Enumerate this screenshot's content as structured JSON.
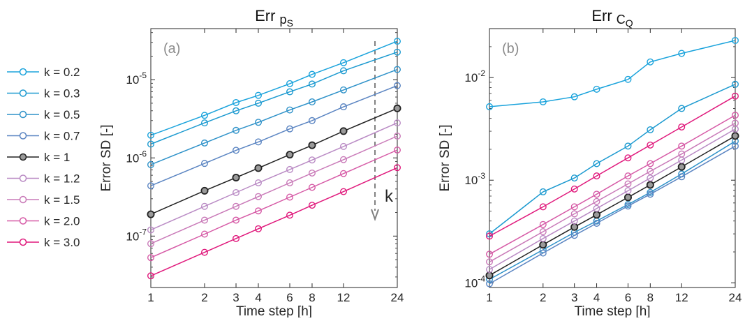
{
  "legend": {
    "placement": "left",
    "entries": [
      {
        "label": "k = 0.2",
        "color": "#1aa3dc"
      },
      {
        "label": "k = 0.3",
        "color": "#1c9ad0"
      },
      {
        "label": "k = 0.5",
        "color": "#2f92c9"
      },
      {
        "label": "k = 0.7",
        "color": "#5b85c2"
      },
      {
        "label": "k = 1",
        "color": "#222222"
      },
      {
        "label": "k = 1.2",
        "color": "#b98ac4"
      },
      {
        "label": "k = 1.5",
        "color": "#c97ab8"
      },
      {
        "label": "k = 2.0",
        "color": "#d65aa6"
      },
      {
        "label": "k = 3.0",
        "color": "#e0197c"
      }
    ]
  },
  "chart_data": [
    {
      "type": "line",
      "title": "Err",
      "title_symbol": "p",
      "title_subscript": "S",
      "panel_label": "(a)",
      "xlabel": "Time step [h]",
      "ylabel": "Error SD [-]",
      "x_scale": "log",
      "y_scale": "log",
      "x": [
        1,
        2,
        3,
        4,
        6,
        8,
        12,
        24
      ],
      "xlim": [
        1,
        24
      ],
      "ylim": [
        2.2e-08,
        4.5e-05
      ],
      "x_ticks": [
        "1",
        "2",
        "3",
        "4",
        "6",
        "8",
        "12",
        "24"
      ],
      "y_ticks": [
        {
          "value": 1e-07,
          "base": "10",
          "exp": "-7"
        },
        {
          "value": 1e-06,
          "base": "10",
          "exp": "-6"
        },
        {
          "value": 1e-05,
          "base": "10",
          "exp": "-5"
        }
      ],
      "grid": false,
      "annotation": {
        "text": "k",
        "arrow": "dashed, pointing down",
        "x_position": 18
      },
      "series": [
        {
          "name": "k = 0.2",
          "values": [
            1.95e-06,
            3.5e-06,
            5.1e-06,
            6.3e-06,
            8.9e-06,
            1.17e-05,
            1.65e-05,
            3.1e-05
          ]
        },
        {
          "name": "k = 0.3",
          "values": [
            1.5e-06,
            2.8e-06,
            4e-06,
            5e-06,
            7e-06,
            8.8e-06,
            1.3e-05,
            2.25e-05
          ]
        },
        {
          "name": "k = 0.5",
          "values": [
            8.2e-07,
            1.55e-06,
            2.25e-06,
            2.85e-06,
            4.1e-06,
            5.2e-06,
            7.4e-06,
            1.35e-05
          ]
        },
        {
          "name": "k = 0.7",
          "values": [
            4.4e-07,
            8.5e-07,
            1.25e-06,
            1.6e-06,
            2.35e-06,
            3e-06,
            4.5e-06,
            8.4e-06
          ]
        },
        {
          "name": "k = 1",
          "values": [
            1.9e-07,
            3.8e-07,
            5.6e-07,
            7.4e-07,
            1.1e-06,
            1.45e-06,
            2.2e-06,
            4.3e-06
          ]
        },
        {
          "name": "k = 1.2",
          "values": [
            1.2e-07,
            2.4e-07,
            3.6e-07,
            4.8e-07,
            7.1e-07,
            9.4e-07,
            1.4e-06,
            2.8e-06
          ]
        },
        {
          "name": "k = 1.5",
          "values": [
            8e-08,
            1.6e-07,
            2.4e-07,
            3.2e-07,
            4.8e-07,
            6.4e-07,
            9.5e-07,
            1.9e-06
          ]
        },
        {
          "name": "k = 2.0",
          "values": [
            5.3e-08,
            1.06e-07,
            1.6e-07,
            2.1e-07,
            3.15e-07,
            4.2e-07,
            6.3e-07,
            1.26e-06
          ]
        },
        {
          "name": "k = 3.0",
          "values": [
            3.1e-08,
            6.2e-08,
            9.3e-08,
            1.24e-07,
            1.85e-07,
            2.48e-07,
            3.7e-07,
            7.5e-07
          ]
        }
      ]
    },
    {
      "type": "line",
      "title": "Err",
      "title_symbol": "C",
      "title_subscript": "Q",
      "panel_label": "(b)",
      "xlabel": "Time step [h]",
      "ylabel": "Error SD [-]",
      "x_scale": "log",
      "y_scale": "log",
      "x": [
        1,
        2,
        3,
        4,
        6,
        8,
        12,
        24
      ],
      "xlim": [
        1,
        24
      ],
      "ylim": [
        9e-05,
        0.03
      ],
      "x_ticks": [
        "1",
        "2",
        "3",
        "4",
        "6",
        "8",
        "12",
        "24"
      ],
      "y_ticks": [
        {
          "value": 0.0001,
          "base": "10",
          "exp": "-4"
        },
        {
          "value": 0.001,
          "base": "10",
          "exp": "-3"
        },
        {
          "value": 0.01,
          "base": "10",
          "exp": "-2"
        }
      ],
      "grid": false,
      "series": [
        {
          "name": "k = 0.2",
          "values": [
            0.0052,
            0.0058,
            0.0065,
            0.0077,
            0.0096,
            0.0142,
            0.0172,
            0.023
          ]
        },
        {
          "name": "k = 0.3",
          "values": [
            0.0003,
            0.00077,
            0.00105,
            0.00145,
            0.00215,
            0.0031,
            0.005,
            0.0086
          ]
        },
        {
          "name": "k = 0.5",
          "values": [
            0.000108,
            0.00021,
            0.00031,
            0.0004,
            0.00058,
            0.00076,
            0.00115,
            0.0024
          ]
        },
        {
          "name": "k = 0.7",
          "values": [
            9.8e-05,
            0.000195,
            0.00029,
            0.00038,
            0.00056,
            0.00073,
            0.00108,
            0.00215
          ]
        },
        {
          "name": "k = 1",
          "values": [
            0.000118,
            0.000235,
            0.00035,
            0.00046,
            0.00068,
            0.0009,
            0.00135,
            0.0027
          ]
        },
        {
          "name": "k = 1.2",
          "values": [
            0.000135,
            0.00027,
            0.0004,
            0.00053,
            0.00079,
            0.00105,
            0.00157,
            0.00315
          ]
        },
        {
          "name": "k = 1.5",
          "values": [
            0.00016,
            0.000315,
            0.00047,
            0.00062,
            0.00092,
            0.00122,
            0.0018,
            0.0036
          ]
        },
        {
          "name": "k = 2.0",
          "values": [
            0.00019,
            0.00037,
            0.00055,
            0.00073,
            0.0011,
            0.00145,
            0.00215,
            0.0043
          ]
        },
        {
          "name": "k = 3.0",
          "values": [
            0.000285,
            0.00055,
            0.00082,
            0.0011,
            0.00165,
            0.0022,
            0.0033,
            0.0066
          ]
        }
      ]
    }
  ]
}
